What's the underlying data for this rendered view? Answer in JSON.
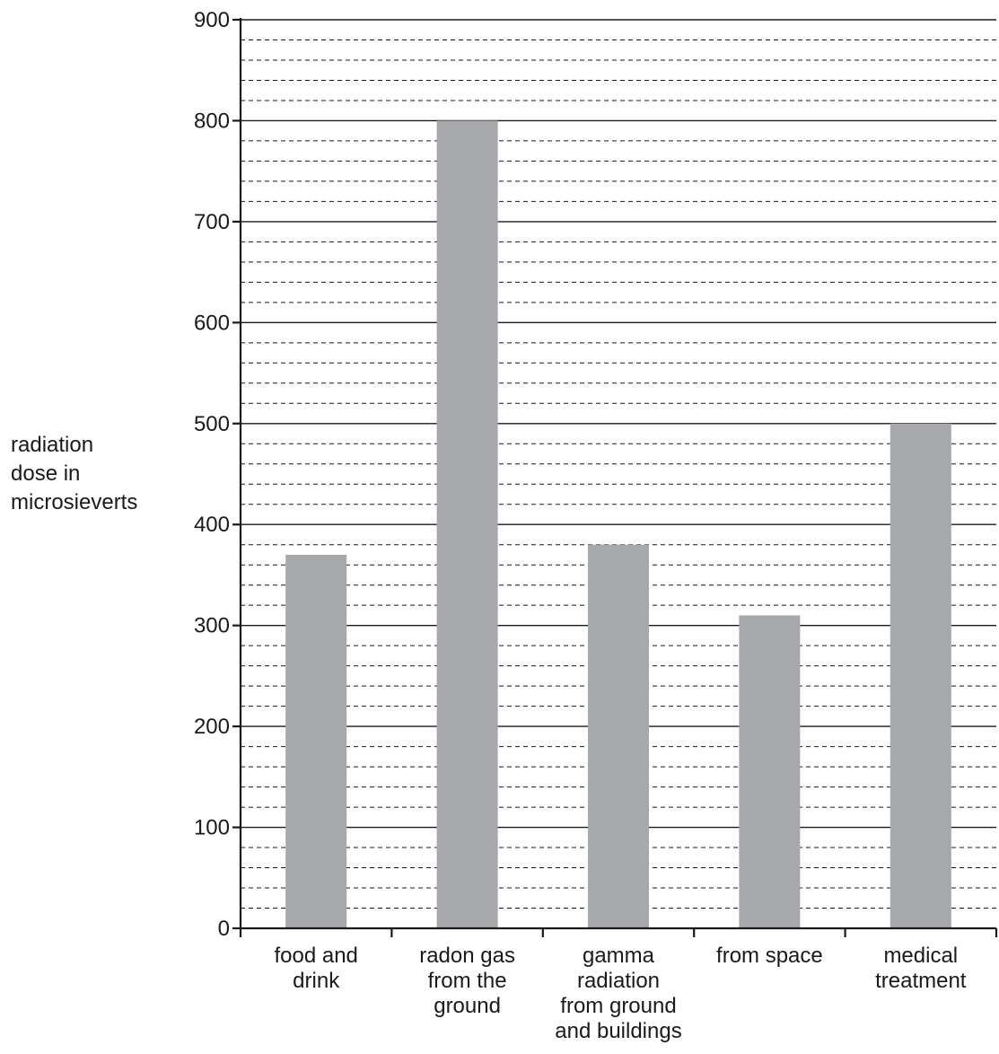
{
  "chart_data": {
    "type": "bar",
    "categories": [
      [
        "food and",
        "drink"
      ],
      [
        "radon gas",
        "from the",
        "ground"
      ],
      [
        "gamma",
        "radiation",
        "from ground",
        "and buildings"
      ],
      [
        "from space"
      ],
      [
        "medical",
        "treatment"
      ]
    ],
    "values": [
      370,
      800,
      380,
      310,
      500
    ],
    "ylabel": [
      "radiation",
      "dose in",
      "microsieverts"
    ],
    "ylim": [
      0,
      900
    ],
    "yticks": [
      0,
      100,
      200,
      300,
      400,
      500,
      600,
      700,
      800,
      900
    ],
    "major_grid_step": 100,
    "minor_grid_step": 20,
    "grid": true,
    "bar_color": "#a7a8ac",
    "grid_color": "#1a1a1a",
    "axis_color": "#1a1a1a"
  }
}
